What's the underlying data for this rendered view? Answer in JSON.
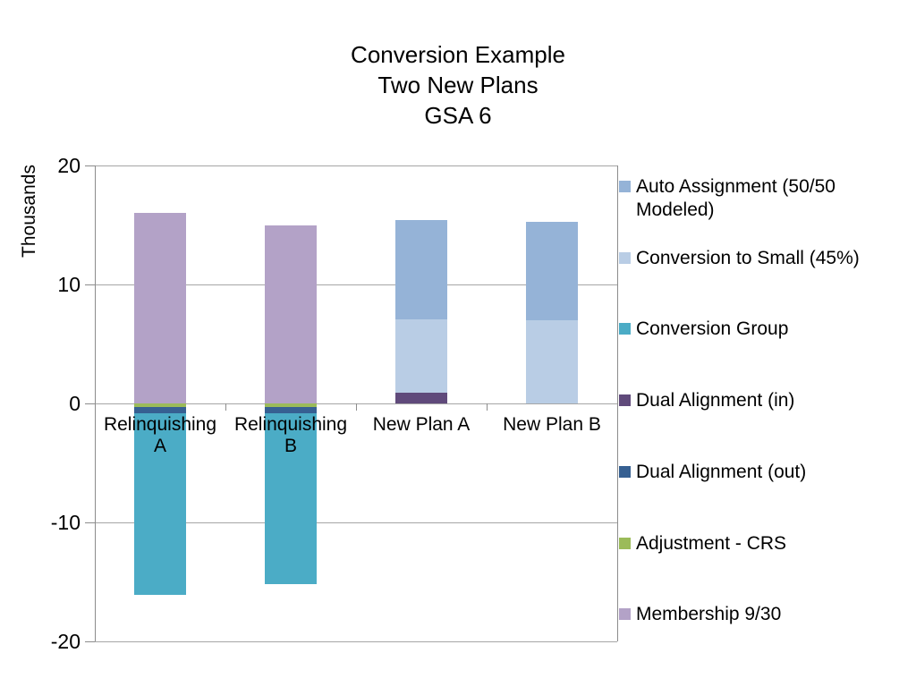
{
  "page": {
    "background": "#FFFFFF",
    "text_color": "#000000"
  },
  "chart_data": {
    "type": "bar",
    "stacked": true,
    "title": "Conversion Example Two New Plans GSA 6",
    "title_lines": [
      "Conversion Example",
      "Two New Plans",
      "GSA 6"
    ],
    "y_axis": {
      "label": "Thousands",
      "min": -20,
      "max": 20,
      "tick_step": 10,
      "ticks": [
        20,
        10,
        0,
        -10,
        -20
      ]
    },
    "categories": [
      "Relinquishing A",
      "Relinquishing B",
      "New Plan A",
      "New Plan B"
    ],
    "series": [
      {
        "name": "Auto Assignment (50/50 Modeled)",
        "color": "#95B3D7",
        "values": [
          0,
          0,
          8.3,
          8.3
        ]
      },
      {
        "name": "Conversion to Small (45%)",
        "color": "#B9CDE5",
        "values": [
          0,
          0,
          6.2,
          7.0
        ]
      },
      {
        "name": "Conversion Group",
        "color": "#4BACC6",
        "values": [
          -15.3,
          -14.4,
          0,
          0
        ]
      },
      {
        "name": "Dual Alignment (in)",
        "color": "#604A7B",
        "values": [
          0,
          0,
          0.9,
          0
        ]
      },
      {
        "name": "Dual Alignment (out)",
        "color": "#366092",
        "values": [
          -0.5,
          -0.5,
          0,
          0
        ]
      },
      {
        "name": "Adjustment - CRS",
        "color": "#9BBB59",
        "values": [
          -0.3,
          -0.3,
          0,
          0
        ]
      },
      {
        "name": "Membership 9/30",
        "color": "#B3A2C7",
        "values": [
          16,
          15,
          0,
          0
        ]
      }
    ],
    "stack_order_positive": [
      "Dual Alignment (in)",
      "Conversion to Small (45%)",
      "Auto Assignment (50/50 Modeled)",
      "Membership 9/30"
    ],
    "stack_order_negative": [
      "Adjustment - CRS",
      "Dual Alignment (out)",
      "Conversion Group"
    ],
    "legend": {
      "position": "right",
      "entries": [
        {
          "label": "Auto Assignment (50/50\nModeled)",
          "color": "#95B3D7"
        },
        {
          "label": "Conversion to Small (45%)",
          "color": "#B9CDE5"
        },
        {
          "label": "Conversion Group",
          "color": "#4BACC6"
        },
        {
          "label": "Dual Alignment (in)",
          "color": "#604A7B"
        },
        {
          "label": "Dual Alignment (out)",
          "color": "#366092"
        },
        {
          "label": "Adjustment - CRS",
          "color": "#9BBB59"
        },
        {
          "label": "Membership 9/30",
          "color": "#B3A2C7"
        }
      ]
    },
    "grid": true,
    "gridline_color": "#A6A6A6",
    "axis_color": "#8C8C8C"
  }
}
